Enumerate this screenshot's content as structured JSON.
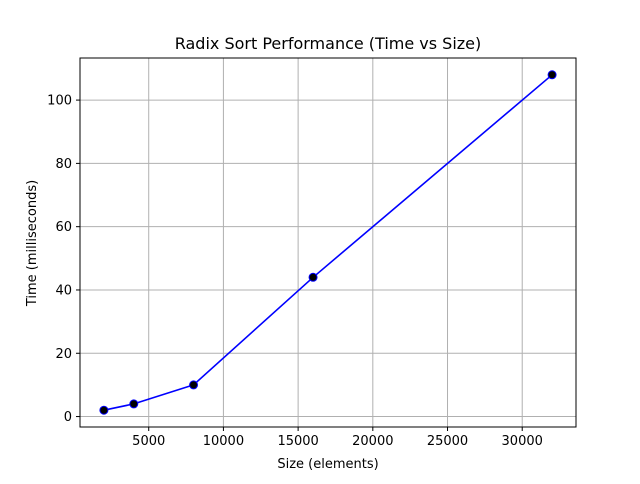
{
  "chart_data": {
    "type": "line",
    "title": "Radix Sort Performance (Time vs Size)",
    "xlabel": "Size (elements)",
    "ylabel": "Time (milliseconds)",
    "xlim": [
      400,
      33600
    ],
    "ylim": [
      -3.3,
      113.3
    ],
    "xticks": [
      5000,
      10000,
      15000,
      20000,
      25000,
      30000
    ],
    "yticks": [
      0,
      20,
      40,
      60,
      80,
      100
    ],
    "grid": true,
    "series": [
      {
        "x": [
          2000,
          4000,
          8000,
          16000,
          32000
        ],
        "y": [
          2,
          4,
          10,
          44,
          108
        ],
        "line_color": "#0000ff",
        "marker_color": "#000000",
        "marker": "circle"
      }
    ]
  }
}
